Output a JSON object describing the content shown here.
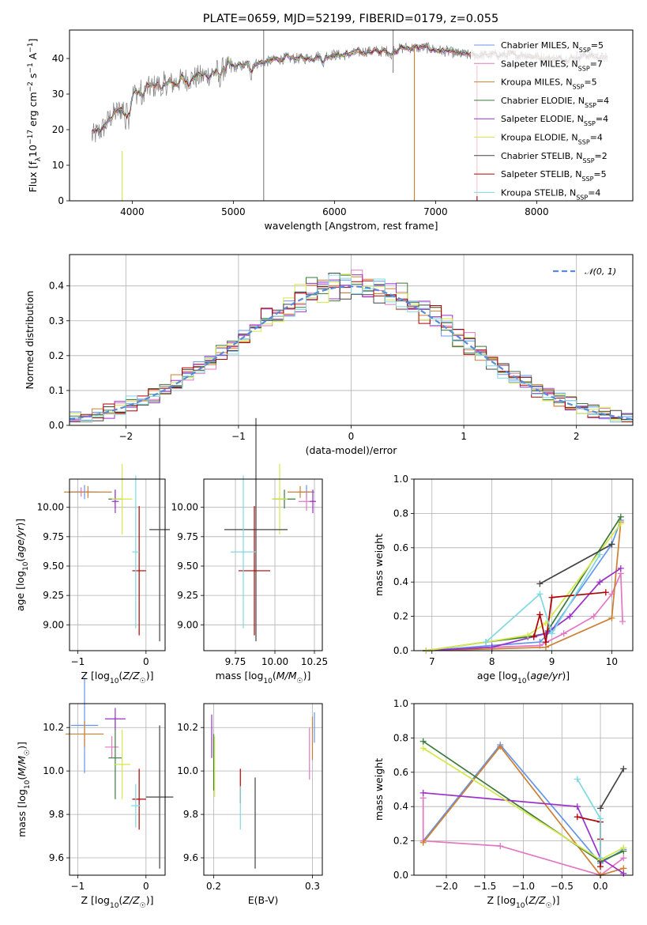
{
  "page": {
    "title": "PLATE=0659, MJD=52199, FIBERID=0179, z=0.055"
  },
  "colors": {
    "Chabrier MILES": "#6495ed",
    "Salpeter MILES": "#e377c2",
    "Kroupa MILES": "#cd7f32",
    "Chabrier ELODIE": "#3a7a3a",
    "Salpeter ELODIE": "#9b30c8",
    "Kroupa ELODIE": "#d4e84a",
    "Chabrier STELIB": "#444444",
    "Salpeter STELIB": "#b00000",
    "Kroupa STELIB": "#7fd8e0",
    "data": "#808080",
    "normal": "#5a8ad8"
  },
  "chart_data": [
    {
      "type": "line",
      "title": "PLATE=0659, MJD=52199, FIBERID=0179, z=0.055",
      "xlabel": "wavelength [Angstrom, rest frame]",
      "ylabel": "Flux [f_λ 10^-17 erg cm^-2 s^-1 A^-1]",
      "xlim": [
        3380,
        8950
      ],
      "ylim": [
        0,
        48
      ],
      "xticks": [
        4000,
        5000,
        6000,
        7000,
        8000
      ],
      "yticks": [
        0,
        10,
        20,
        30,
        40
      ],
      "legend_position": "top-right",
      "data_envelope": {
        "x": [
          3600,
          3700,
          3800,
          3900,
          4000,
          4100,
          4200,
          4300,
          4400,
          4500,
          4700,
          4900,
          5100,
          5300,
          5500,
          5700,
          5900,
          6100,
          6300,
          6500,
          6700,
          6900,
          7100,
          7300,
          7500,
          7700,
          7900,
          8100,
          8300,
          8500,
          8700
        ],
        "y": [
          18,
          20,
          24,
          26,
          30,
          31,
          32,
          33,
          33,
          34,
          35,
          37,
          38,
          39,
          40,
          40,
          41,
          41,
          42,
          42,
          43,
          43,
          42,
          41,
          41,
          41,
          41,
          40,
          40,
          41,
          40
        ]
      },
      "series": [
        {
          "name": "Chabrier MILES",
          "nssp": "5"
        },
        {
          "name": "Salpeter MILES",
          "nssp": "7"
        },
        {
          "name": "Kroupa MILES",
          "nssp": "5"
        },
        {
          "name": "Chabrier ELODIE",
          "nssp": "4"
        },
        {
          "name": "Salpeter ELODIE",
          "nssp": "4"
        },
        {
          "name": "Kroupa ELODIE",
          "nssp": "4"
        },
        {
          "name": "Chabrier STELIB",
          "nssp": "2"
        },
        {
          "name": "Salpeter STELIB",
          "nssp": "5"
        },
        {
          "name": "Kroupa STELIB",
          "nssp": "4"
        }
      ]
    },
    {
      "type": "line",
      "xlabel": "(data-model)/error",
      "ylabel": "Normed distribution",
      "xlim": [
        -2.5,
        2.5
      ],
      "ylim": [
        0,
        0.49
      ],
      "xticks": [
        -2,
        -1,
        0,
        1,
        2
      ],
      "yticks": [
        0.0,
        0.1,
        0.2,
        0.3,
        0.4
      ],
      "grid": true,
      "legend_position": "top-right",
      "legend": [
        "𝒩(0, 1)"
      ],
      "bin_width": 0.1,
      "histogram_bins_from": -2.5
    },
    {
      "type": "scatter",
      "xlabel": "Z [log10(Z/Z☉)]",
      "ylabel": "age [log10(age/yr)]",
      "xlim": [
        -1.12,
        0.28
      ],
      "ylim": [
        8.78,
        10.24
      ],
      "xticks": [
        -1,
        0
      ],
      "yticks": [
        9.0,
        9.25,
        9.5,
        9.75,
        10.0
      ],
      "ytick_labels": [
        "9.00",
        "9.25",
        "9.50",
        "9.75",
        "10.00"
      ],
      "grid": true,
      "points": [
        {
          "series": "Chabrier MILES",
          "x": -0.9,
          "y": 10.13,
          "xerr": 0.2,
          "yerr": 0.06
        },
        {
          "series": "Salpeter MILES",
          "x": -0.95,
          "y": 10.13,
          "xerr": 0.15,
          "yerr": 0.04
        },
        {
          "series": "Kroupa MILES",
          "x": -0.85,
          "y": 10.13,
          "xerr": 0.35,
          "yerr": 0.05
        },
        {
          "series": "Chabrier ELODIE",
          "x": -0.45,
          "y": 10.07,
          "xerr": 0.1,
          "yerr": 0.08
        },
        {
          "series": "Salpeter ELODIE",
          "x": -0.45,
          "y": 10.05,
          "xerr": 0.05,
          "yerr": 0.1
        },
        {
          "series": "Kroupa ELODIE",
          "x": -0.35,
          "y": 10.07,
          "xerr": 0.15,
          "yerr": 0.3
        },
        {
          "series": "Chabrier STELIB",
          "x": 0.2,
          "y": 9.81,
          "xerr": 0.15,
          "yerr": 0.95
        },
        {
          "series": "Salpeter STELIB",
          "x": -0.1,
          "y": 9.46,
          "xerr": 0.1,
          "yerr": 0.55
        },
        {
          "series": "Kroupa STELIB",
          "x": -0.15,
          "y": 9.62,
          "xerr": 0.05,
          "yerr": 0.65
        }
      ]
    },
    {
      "type": "scatter",
      "xlabel": "mass [log10(M/M☉)]",
      "xlim": [
        9.55,
        10.3
      ],
      "ylim": [
        8.78,
        10.24
      ],
      "xticks": [
        9.75,
        10.0,
        10.25
      ],
      "xtick_labels": [
        "9.75",
        "10.00",
        "10.25"
      ],
      "yticks": [
        9.0,
        9.25,
        9.5,
        9.75,
        10.0
      ],
      "ytick_labels": [
        "9.00",
        "9.25",
        "9.50",
        "9.75",
        "10.00"
      ],
      "grid": true,
      "points": [
        {
          "series": "Chabrier MILES",
          "x": 10.2,
          "y": 10.13,
          "xerr": 0.05,
          "yerr": 0.06
        },
        {
          "series": "Salpeter MILES",
          "x": 10.2,
          "y": 10.05,
          "xerr": 0.05,
          "yerr": 0.08
        },
        {
          "series": "Kroupa MILES",
          "x": 10.16,
          "y": 10.13,
          "xerr": 0.08,
          "yerr": 0.05
        },
        {
          "series": "Chabrier ELODIE",
          "x": 10.06,
          "y": 10.07,
          "xerr": 0.07,
          "yerr": 0.08
        },
        {
          "series": "Salpeter ELODIE",
          "x": 10.24,
          "y": 10.05,
          "xerr": 0.02,
          "yerr": 0.1
        },
        {
          "series": "Kroupa ELODIE",
          "x": 10.03,
          "y": 10.07,
          "xerr": 0.05,
          "yerr": 0.3
        },
        {
          "series": "Chabrier STELIB",
          "x": 9.88,
          "y": 9.81,
          "xerr": 0.2,
          "yerr": 0.95
        },
        {
          "series": "Salpeter STELIB",
          "x": 9.87,
          "y": 9.46,
          "xerr": 0.1,
          "yerr": 0.55
        },
        {
          "series": "Kroupa STELIB",
          "x": 9.8,
          "y": 9.62,
          "xerr": 0.08,
          "yerr": 0.65
        }
      ]
    },
    {
      "type": "line",
      "xlabel": "age [log10(age/yr)]",
      "ylabel": "mass weight",
      "xlim": [
        6.7,
        10.35
      ],
      "ylim": [
        0,
        1.0
      ],
      "xticks": [
        7,
        8,
        9,
        10
      ],
      "yticks": [
        0.0,
        0.2,
        0.4,
        0.6,
        0.8,
        1.0
      ],
      "grid": true,
      "series": [
        {
          "name": "Chabrier MILES",
          "x": [
            6.9,
            8.0,
            8.8,
            9.0,
            10.0,
            10.15
          ],
          "y": [
            0.0,
            0.03,
            0.05,
            0.12,
            0.62,
            0.76
          ]
        },
        {
          "name": "Salpeter MILES",
          "x": [
            6.9,
            8.0,
            8.8,
            9.2,
            9.7,
            10.0,
            10.15,
            10.18
          ],
          "y": [
            0.0,
            0.02,
            0.03,
            0.1,
            0.2,
            0.33,
            0.45,
            0.17
          ]
        },
        {
          "name": "Kroupa MILES",
          "x": [
            6.9,
            8.0,
            8.9,
            10.0,
            10.15
          ],
          "y": [
            0.0,
            0.01,
            0.02,
            0.19,
            0.75
          ]
        },
        {
          "name": "Chabrier ELODIE",
          "x": [
            6.9,
            7.9,
            8.6,
            8.9,
            10.15
          ],
          "y": [
            0.0,
            0.05,
            0.08,
            0.1,
            0.78
          ]
        },
        {
          "name": "Salpeter ELODIE",
          "x": [
            6.9,
            8.0,
            8.9,
            9.3,
            9.8,
            10.15
          ],
          "y": [
            0.0,
            0.02,
            0.1,
            0.2,
            0.4,
            0.48
          ]
        },
        {
          "name": "Kroupa ELODIE",
          "x": [
            6.9,
            7.9,
            8.6,
            8.9,
            10.15
          ],
          "y": [
            0.0,
            0.05,
            0.09,
            0.16,
            0.74
          ]
        },
        {
          "name": "Chabrier STELIB",
          "x": [
            8.8,
            10.0
          ],
          "y": [
            0.39,
            0.62
          ]
        },
        {
          "name": "Salpeter STELIB",
          "x": [
            8.7,
            8.8,
            8.9,
            9.0,
            9.9
          ],
          "y": [
            0.08,
            0.21,
            0.05,
            0.31,
            0.34
          ]
        },
        {
          "name": "Kroupa STELIB",
          "x": [
            7.9,
            8.8,
            9.0,
            9.8
          ],
          "y": [
            0.05,
            0.33,
            0.1,
            0.56
          ]
        }
      ]
    },
    {
      "type": "scatter",
      "xlabel": "Z [log10(Z/Z☉)]",
      "ylabel": "mass [log10(M/M☉)]",
      "xlim": [
        -1.12,
        0.28
      ],
      "ylim": [
        9.52,
        10.31
      ],
      "xticks": [
        -1,
        0
      ],
      "yticks": [
        9.6,
        9.8,
        10.0,
        10.2
      ],
      "grid": true,
      "points": [
        {
          "series": "Chabrier MILES",
          "x": -0.9,
          "y": 10.21,
          "xerr": 0.2,
          "yerr": 0.22
        },
        {
          "series": "Salpeter MILES",
          "x": -0.5,
          "y": 10.11,
          "xerr": 0.1,
          "yerr": 0.05
        },
        {
          "series": "Kroupa MILES",
          "x": -0.9,
          "y": 10.17,
          "xerr": 0.28,
          "yerr": 0.06
        },
        {
          "series": "Chabrier ELODIE",
          "x": -0.45,
          "y": 10.06,
          "xerr": 0.1,
          "yerr": 0.19
        },
        {
          "series": "Salpeter ELODIE",
          "x": -0.45,
          "y": 10.24,
          "xerr": 0.15,
          "yerr": 0.05
        },
        {
          "series": "Kroupa ELODIE",
          "x": -0.35,
          "y": 10.03,
          "xerr": 0.12,
          "yerr": 0.16
        },
        {
          "series": "Chabrier STELIB",
          "x": 0.2,
          "y": 9.88,
          "xerr": 0.2,
          "yerr": 0.33
        },
        {
          "series": "Salpeter STELIB",
          "x": -0.1,
          "y": 9.87,
          "xerr": 0.1,
          "yerr": 0.14
        },
        {
          "series": "Kroupa STELIB",
          "x": -0.15,
          "y": 9.84,
          "xerr": 0.07,
          "yerr": 0.1
        }
      ]
    },
    {
      "type": "scatter",
      "xlabel": "E(B-V)",
      "xlim": [
        0.19,
        0.31
      ],
      "ylim": [
        9.52,
        10.31
      ],
      "xticks": [
        0.2,
        0.3
      ],
      "yticks": [
        9.6,
        9.8,
        10.0,
        10.2
      ],
      "grid": true,
      "points": [
        {
          "series": "Chabrier MILES",
          "x": 0.302,
          "y": 10.2,
          "xerr": 0.0,
          "yerr": 0.07
        },
        {
          "series": "Salpeter MILES",
          "x": 0.297,
          "y": 10.08,
          "xerr": 0.0,
          "yerr": 0.12
        },
        {
          "series": "Kroupa MILES",
          "x": 0.3,
          "y": 10.15,
          "xerr": 0.0,
          "yerr": 0.1
        },
        {
          "series": "Chabrier ELODIE",
          "x": 0.2,
          "y": 10.04,
          "xerr": 0.0,
          "yerr": 0.13
        },
        {
          "series": "Salpeter ELODIE",
          "x": 0.198,
          "y": 10.16,
          "xerr": 0.0,
          "yerr": 0.1
        },
        {
          "series": "Kroupa ELODIE",
          "x": 0.201,
          "y": 10.02,
          "xerr": 0.0,
          "yerr": 0.14
        },
        {
          "series": "Chabrier STELIB",
          "x": 0.242,
          "y": 9.76,
          "xerr": 0.0,
          "yerr": 0.21
        },
        {
          "series": "Salpeter STELIB",
          "x": 0.227,
          "y": 9.93,
          "xerr": 0.0,
          "yerr": 0.08
        },
        {
          "series": "Kroupa STELIB",
          "x": 0.227,
          "y": 9.83,
          "xerr": 0.0,
          "yerr": 0.1
        }
      ]
    },
    {
      "type": "line",
      "xlabel": "Z [log10(Z/Z☉)]",
      "ylabel": "mass weight",
      "xlim": [
        -2.42,
        0.42
      ],
      "ylim": [
        0,
        1.0
      ],
      "xticks": [
        -2.0,
        -1.5,
        -1.0,
        -0.5,
        0.0
      ],
      "xtick_labels": [
        "−2.0",
        "−1.5",
        "−1.0",
        "−0.5",
        "0.0"
      ],
      "yticks": [
        0.0,
        0.2,
        0.4,
        0.6,
        0.8,
        1.0
      ],
      "grid": true,
      "series": [
        {
          "name": "Chabrier MILES",
          "x": [
            -2.3,
            -1.3,
            0.0,
            0.3
          ],
          "y": [
            0.2,
            0.76,
            0.07,
            0.15
          ]
        },
        {
          "name": "Salpeter MILES",
          "x": [
            -2.3,
            -2.3,
            -1.3,
            0.0,
            0.3
          ],
          "y": [
            0.45,
            0.2,
            0.17,
            0.0,
            0.1
          ]
        },
        {
          "name": "Kroupa MILES",
          "x": [
            -2.3,
            -1.3,
            0.0,
            0.3
          ],
          "y": [
            0.19,
            0.75,
            0.0,
            0.04
          ]
        },
        {
          "name": "Chabrier ELODIE",
          "x": [
            -2.3,
            0.0,
            0.3
          ],
          "y": [
            0.78,
            0.08,
            0.14
          ]
        },
        {
          "name": "Salpeter ELODIE",
          "x": [
            -2.3,
            -0.3,
            0.0,
            0.3
          ],
          "y": [
            0.48,
            0.4,
            0.1,
            0.01
          ]
        },
        {
          "name": "Kroupa ELODIE",
          "x": [
            -2.3,
            0.0,
            0.3
          ],
          "y": [
            0.74,
            0.09,
            0.16
          ]
        },
        {
          "name": "Chabrier STELIB",
          "x": [
            0.0,
            0.3
          ],
          "y": [
            0.39,
            0.62
          ]
        },
        {
          "name": "Salpeter STELIB",
          "x": [
            -0.3,
            0.0,
            0.0,
            0.0
          ],
          "y": [
            0.34,
            0.31,
            0.21,
            0.05
          ]
        },
        {
          "name": "Kroupa STELIB",
          "x": [
            -0.3,
            0.0,
            0.0
          ],
          "y": [
            0.56,
            0.33,
            0.1
          ]
        }
      ]
    }
  ]
}
